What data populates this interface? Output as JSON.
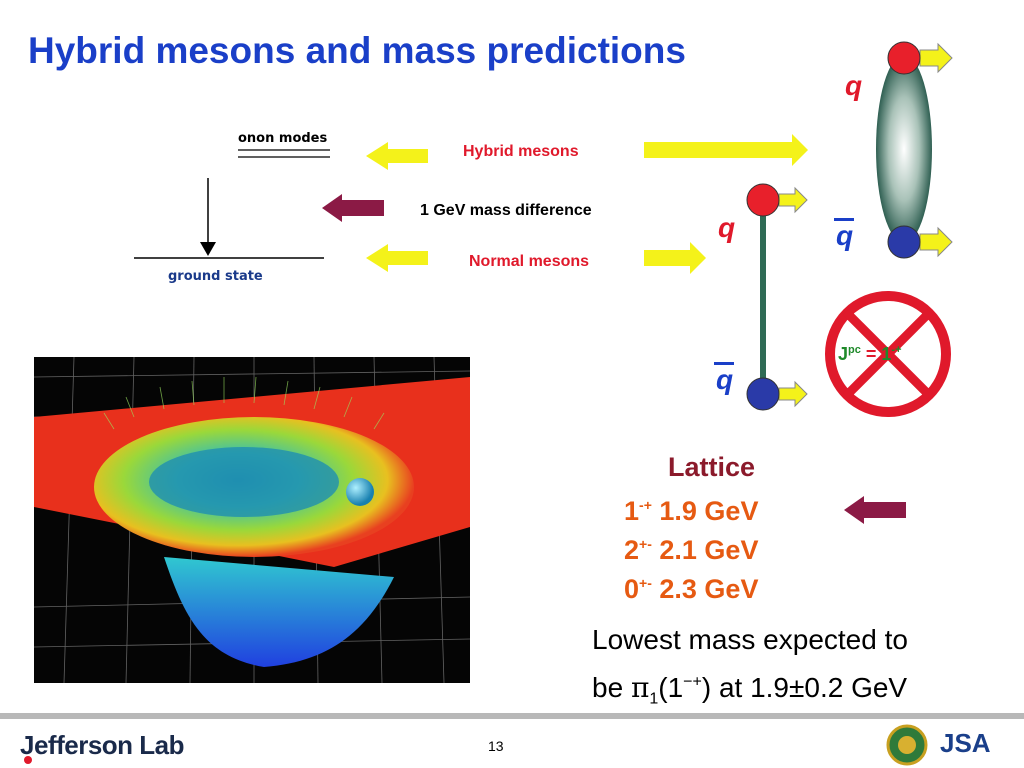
{
  "slide": {
    "title": "Hybrid mesons and mass predictions",
    "page_number": "13"
  },
  "diagram": {
    "gluon_modes_label": "onon modes",
    "ground_state_label": "ground state",
    "hybrid_mesons_label": "Hybrid mesons",
    "mass_difference_label": "1 GeV mass difference",
    "normal_mesons_label": "Normal mesons",
    "quark_symbol": "q",
    "antiquark_symbol": "q",
    "jpc_base": "J",
    "jpc_sup": "pc",
    "jpc_equals": "=",
    "jpc_value": "1",
    "jpc_value_sup": "-+"
  },
  "lattice": {
    "heading": "Lattice",
    "rows": [
      {
        "jpc": "1",
        "sup": "-+",
        "mass": "1.9 GeV"
      },
      {
        "jpc": "2",
        "sup": "+-",
        "mass": "2.1 GeV"
      },
      {
        "jpc": "0",
        "sup": "+-",
        "mass": "2.3 GeV"
      }
    ]
  },
  "conclusion": {
    "line1": "Lowest mass expected to",
    "line2_prefix": "be ",
    "line2_symbol": "π",
    "line2_sub": "1",
    "line2_paren": "(1",
    "line2_sup": "−+",
    "line2_suffix": ") at 1.9±0.2 GeV"
  },
  "footer": {
    "logo_text": "Jefferson Lab",
    "jsa_text": "JSA"
  },
  "colors": {
    "title": "#1a3fc8",
    "red_label": "#e0192b",
    "arrow_yellow": "#f4f21a",
    "arrow_maroon": "#8b1a45",
    "quark_red": "#e8202b",
    "quark_blue": "#2a3aa8",
    "flux_tube": "#2f6b55",
    "lattice_orange": "#e65a12"
  }
}
